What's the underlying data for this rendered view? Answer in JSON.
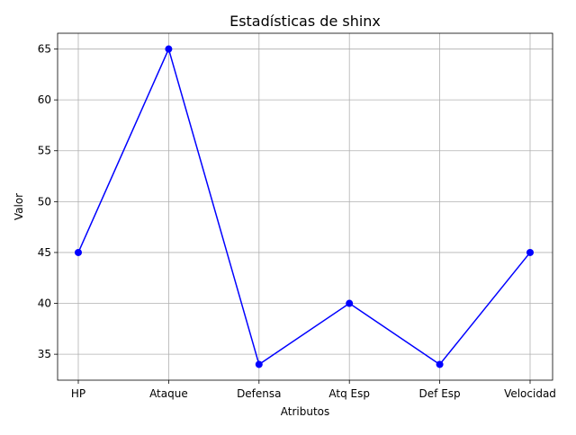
{
  "chart_data": {
    "type": "line",
    "title": "Estadísticas de shinx",
    "xlabel": "Atributos",
    "ylabel": "Valor",
    "categories": [
      "HP",
      "Ataque",
      "Defensa",
      "Atq Esp",
      "Def Esp",
      "Velocidad"
    ],
    "series": [
      {
        "values": [
          45,
          65,
          34,
          40,
          34,
          45
        ],
        "color": "#0000ff",
        "marker": "circle"
      }
    ],
    "ylim": [
      32.45,
      66.55
    ],
    "yticks": [
      35,
      40,
      45,
      50,
      55,
      60,
      65
    ],
    "grid": true,
    "grid_color": "#b0b0b0",
    "legend": false
  }
}
